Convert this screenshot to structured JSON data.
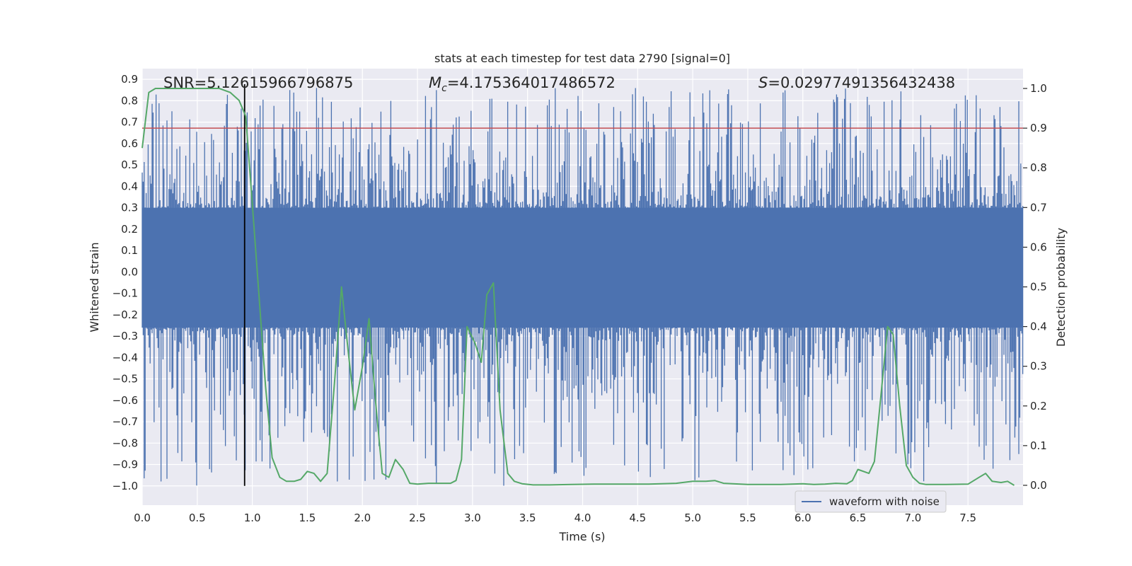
{
  "chart_data": {
    "type": "line",
    "title": "stats at each timestep for test data 2790 [signal=0]",
    "xlabel": "Time (s)",
    "ylabel_left": "Whitened strain",
    "ylabel_right": "Detection probability",
    "xlim": [
      0,
      8
    ],
    "ylim_left": [
      -1.09,
      0.95
    ],
    "ylim_right": [
      -0.05,
      1.05
    ],
    "x_ticks": [
      "0.0",
      "0.5",
      "1.0",
      "1.5",
      "2.0",
      "2.5",
      "3.0",
      "3.5",
      "4.0",
      "4.5",
      "5.0",
      "5.5",
      "6.0",
      "6.5",
      "7.0",
      "7.5"
    ],
    "y_ticks_left": [
      "0.9",
      "0.8",
      "0.7",
      "0.6",
      "0.5",
      "0.4",
      "0.3",
      "0.2",
      "0.1",
      "0.0",
      "−0.1",
      "−0.2",
      "−0.3",
      "−0.4",
      "−0.5",
      "−0.6",
      "−0.7",
      "−0.8",
      "−0.9",
      "−1.0"
    ],
    "y_ticks_right": [
      "1.0",
      "0.9",
      "0.8",
      "0.7",
      "0.6",
      "0.5",
      "0.4",
      "0.3",
      "0.2",
      "0.1",
      "0.0"
    ],
    "grid": true,
    "legend_position": "lower-right",
    "annotations": {
      "snr": "SNR=5.12615966796875",
      "mc": "=4.175364017486572",
      "s": "=0.02977491356432438"
    },
    "threshold": 0.9,
    "marker_time": 0.93,
    "marker_ymin": -1.0,
    "series": [
      {
        "name": "waveform with noise",
        "color": "#4c72b0",
        "axis": "left",
        "kind": "noisy-strain",
        "core_range": [
          -0.26,
          0.3
        ],
        "max_extent": [
          -1.0,
          0.86
        ]
      },
      {
        "color": "#55a868",
        "axis": "right",
        "x": [
          0.0,
          0.06,
          0.12,
          0.2,
          0.3,
          0.5,
          0.7,
          0.8,
          0.88,
          0.94,
          1.0,
          1.06,
          1.12,
          1.18,
          1.25,
          1.31,
          1.38,
          1.44,
          1.5,
          1.56,
          1.62,
          1.68,
          1.75,
          1.81,
          1.87,
          1.93,
          2.0,
          2.06,
          2.12,
          2.18,
          2.24,
          2.3,
          2.37,
          2.43,
          2.5,
          2.6,
          2.7,
          2.8,
          2.85,
          2.9,
          2.95,
          3.02,
          3.08,
          3.13,
          3.19,
          3.25,
          3.32,
          3.38,
          3.45,
          3.55,
          3.7,
          3.9,
          4.1,
          4.3,
          4.6,
          4.85,
          5.0,
          5.12,
          5.2,
          5.28,
          5.5,
          5.8,
          6.0,
          6.1,
          6.2,
          6.3,
          6.4,
          6.45,
          6.5,
          6.6,
          6.65,
          6.7,
          6.77,
          6.82,
          6.88,
          6.94,
          7.0,
          7.06,
          7.12,
          7.2,
          7.3,
          7.5,
          7.6,
          7.66,
          7.72,
          7.8,
          7.86,
          7.92
        ],
        "y": [
          0.85,
          0.99,
          1.0,
          1.0,
          1.0,
          1.0,
          1.0,
          0.99,
          0.97,
          0.93,
          0.71,
          0.48,
          0.25,
          0.07,
          0.02,
          0.01,
          0.01,
          0.015,
          0.035,
          0.03,
          0.01,
          0.03,
          0.27,
          0.5,
          0.34,
          0.19,
          0.3,
          0.42,
          0.21,
          0.03,
          0.02,
          0.065,
          0.04,
          0.005,
          0.003,
          0.005,
          0.005,
          0.005,
          0.012,
          0.065,
          0.4,
          0.36,
          0.31,
          0.48,
          0.51,
          0.19,
          0.03,
          0.01,
          0.004,
          0.001,
          0.001,
          0.002,
          0.003,
          0.003,
          0.003,
          0.005,
          0.01,
          0.01,
          0.012,
          0.005,
          0.002,
          0.002,
          0.004,
          0.002,
          0.003,
          0.005,
          0.004,
          0.012,
          0.04,
          0.03,
          0.06,
          0.2,
          0.4,
          0.38,
          0.2,
          0.05,
          0.02,
          0.005,
          0.002,
          0.002,
          0.002,
          0.003,
          0.02,
          0.03,
          0.01,
          0.007,
          0.01,
          0.0
        ]
      }
    ]
  }
}
